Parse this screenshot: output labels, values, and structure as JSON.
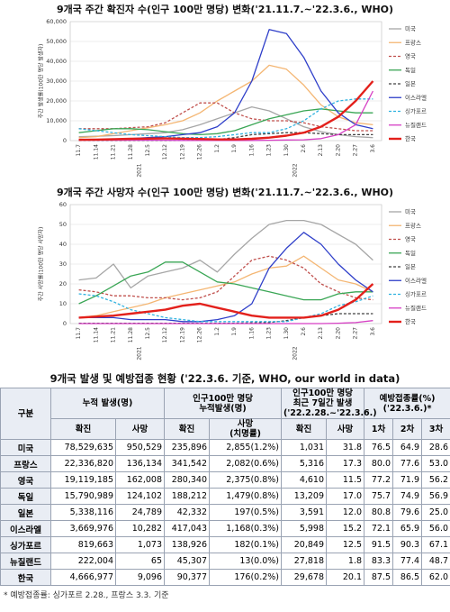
{
  "chart_data": [
    {
      "type": "line",
      "title": "9개국 주간 확진자 수(인구 100만 명당) 변화('21.11.7.~'22.3.6., WHO)",
      "y_label": "주간 발생률(100만 명당 발생자)",
      "categories": [
        "11.7",
        "11.14",
        "11.21",
        "11.28",
        "12.5",
        "12.12",
        "12.19",
        "12.26",
        "1.2",
        "1.9",
        "1.16",
        "1.23",
        "1.30",
        "2.6",
        "2.13",
        "2.20",
        "2.27",
        "3.6"
      ],
      "x_groups": [
        "2021",
        "2022"
      ],
      "ylim": [
        0,
        60000
      ],
      "yticks": [
        0,
        {
          "value": 10000,
          "label": "10,000"
        },
        {
          "value": 20000,
          "label": "20,000"
        },
        {
          "value": 30000,
          "label": "30,000"
        },
        {
          "value": 40000,
          "label": "40,000"
        },
        {
          "value": 50000,
          "label": "50,000"
        },
        {
          "value": 60000,
          "label": "60,000"
        }
      ],
      "grid": true,
      "series": [
        {
          "name": "미국",
          "color": "#a6a6a6",
          "values": [
            2000,
            2200,
            2500,
            3000,
            3500,
            4000,
            5500,
            8000,
            11000,
            14000,
            17000,
            15000,
            11000,
            7000,
            4500,
            3000,
            2000,
            1500
          ]
        },
        {
          "name": "프랑스",
          "color": "#f4b673",
          "values": [
            1500,
            2000,
            3500,
            5000,
            6500,
            8000,
            10000,
            14000,
            20000,
            25000,
            30000,
            38000,
            36000,
            28000,
            18000,
            12000,
            9000,
            8000
          ]
        },
        {
          "name": "영국",
          "color": "#c0504d",
          "dashed": true,
          "values": [
            6000,
            6000,
            6000,
            6500,
            7000,
            9000,
            14000,
            19000,
            19000,
            14000,
            11000,
            10000,
            10000,
            9000,
            7000,
            6000,
            5000,
            5000
          ]
        },
        {
          "name": "독일",
          "color": "#3aa655",
          "values": [
            4000,
            5000,
            6000,
            6000,
            5500,
            4500,
            3500,
            3000,
            3500,
            5000,
            8000,
            11000,
            13000,
            15000,
            16000,
            15000,
            14000,
            14000
          ]
        },
        {
          "name": "일본",
          "color": "#404040",
          "dashed": true,
          "values": [
            50,
            50,
            50,
            50,
            50,
            50,
            100,
            200,
            500,
            1500,
            3000,
            3500,
            4000,
            4000,
            3500,
            3000,
            3000,
            3000
          ]
        },
        {
          "name": "이스라엘",
          "color": "#2e3ec9",
          "values": [
            500,
            500,
            700,
            1000,
            1500,
            2000,
            3000,
            4000,
            7000,
            14000,
            30000,
            56000,
            54000,
            42000,
            25000,
            14000,
            8000,
            6000
          ]
        },
        {
          "name": "싱가포르",
          "color": "#2fb2e0",
          "dashed": true,
          "values": [
            6000,
            5000,
            4000,
            3000,
            2500,
            2000,
            1500,
            1500,
            2000,
            3000,
            4000,
            4000,
            6000,
            10000,
            16000,
            20000,
            21000,
            21000
          ]
        },
        {
          "name": "뉴질랜드",
          "color": "#d63fc4",
          "values": [
            200,
            200,
            200,
            200,
            200,
            200,
            100,
            100,
            100,
            100,
            100,
            200,
            300,
            400,
            1000,
            3000,
            8000,
            25000
          ]
        },
        {
          "name": "한국",
          "color": "#e3201b",
          "bold": true,
          "values": [
            400,
            500,
            700,
            900,
            1000,
            1100,
            1000,
            800,
            600,
            600,
            900,
            1500,
            2500,
            4000,
            7000,
            12000,
            20000,
            30000
          ]
        }
      ]
    },
    {
      "type": "line",
      "title": "9개국 주간 사망자 수(인구 100만 명당) 변화('21.11.7.~'22.3.6., WHO)",
      "y_label": "주간 사망률(100만 명당 사망자)",
      "categories": [
        "11.7",
        "11.14",
        "11.21",
        "11.28",
        "12.5",
        "12.12",
        "12.19",
        "12.26",
        "1.2",
        "1.9",
        "1.16",
        "1.23",
        "1.30",
        "2.6",
        "2.13",
        "2.20",
        "2.27",
        "3.6"
      ],
      "x_groups": [
        "2021",
        "2022"
      ],
      "ylim": [
        0,
        60
      ],
      "yticks": [
        0,
        10,
        20,
        30,
        40,
        50,
        60
      ],
      "grid": true,
      "series": [
        {
          "name": "미국",
          "color": "#a6a6a6",
          "values": [
            22,
            23,
            30,
            18,
            24,
            26,
            28,
            32,
            26,
            35,
            43,
            50,
            52,
            52,
            50,
            45,
            40,
            32
          ]
        },
        {
          "name": "프랑스",
          "color": "#f4b673",
          "values": [
            3,
            4,
            6,
            8,
            10,
            13,
            15,
            17,
            19,
            21,
            25,
            28,
            29,
            34,
            28,
            22,
            20,
            16
          ]
        },
        {
          "name": "영국",
          "color": "#c0504d",
          "dashed": true,
          "values": [
            17,
            16,
            14,
            14,
            13,
            13,
            12,
            13,
            16,
            24,
            32,
            34,
            32,
            28,
            20,
            16,
            13,
            12
          ]
        },
        {
          "name": "독일",
          "color": "#3aa655",
          "values": [
            10,
            14,
            19,
            24,
            26,
            31,
            31,
            26,
            21,
            20,
            18,
            16,
            14,
            12,
            12,
            15,
            16,
            16
          ]
        },
        {
          "name": "일본",
          "color": "#404040",
          "dashed": true,
          "values": [
            0.2,
            0.2,
            0.2,
            0.2,
            0.2,
            0.2,
            0.2,
            0.2,
            0.2,
            0.2,
            0.3,
            0.5,
            1.5,
            3,
            4,
            5,
            5,
            5
          ]
        },
        {
          "name": "이스라엘",
          "color": "#2e3ec9",
          "values": [
            3,
            3,
            3,
            2,
            2,
            2,
            1,
            1,
            2,
            4,
            10,
            28,
            38,
            46,
            40,
            30,
            22,
            16
          ]
        },
        {
          "name": "싱가포르",
          "color": "#2fb2e0",
          "dashed": true,
          "values": [
            15,
            14,
            11,
            7,
            5,
            3,
            2,
            1,
            1,
            1,
            1,
            1,
            1,
            3,
            5,
            9,
            11,
            14
          ]
        },
        {
          "name": "뉴질랜드",
          "color": "#d63fc4",
          "values": [
            0,
            0,
            0,
            0,
            0,
            0,
            0,
            0,
            0,
            0,
            0,
            0,
            0,
            0,
            0,
            0.2,
            0.5,
            1.5
          ]
        },
        {
          "name": "한국",
          "color": "#e3201b",
          "bold": true,
          "values": [
            3,
            3.5,
            4,
            5,
            6,
            7,
            9,
            10,
            8,
            6,
            4,
            3,
            3,
            3,
            4,
            7,
            12,
            20
          ]
        }
      ]
    }
  ],
  "table": {
    "title": "9개국 발생 및 예방접종 현황 ('22.3.6. 기준, WHO, our world in data)",
    "group_header": "구분",
    "header_groups": [
      "누적 발생(명)",
      "인구100만 명당\n누적발생(명)",
      "인구100만 명당\n최근 7일간 발생\n('22.2.28.~'22.3.6.)",
      "예방접종률(%)\n('22.3.6.)*"
    ],
    "sub_headers": [
      "확진",
      "사망",
      "확진",
      "사망\n(치명률)",
      "확진",
      "사망",
      "1차",
      "2차",
      "3차"
    ],
    "rows": [
      [
        "미국",
        "78,529,635",
        "950,529",
        "235,896",
        "2,855(1.2%)",
        "1,031",
        "31.8",
        "76.5",
        "64.9",
        "28.6"
      ],
      [
        "프랑스",
        "22,336,820",
        "136,134",
        "341,542",
        "2,082(0.6%)",
        "5,316",
        "17.3",
        "80.0",
        "77.6",
        "53.0"
      ],
      [
        "영국",
        "19,119,185",
        "162,008",
        "280,340",
        "2,375(0.8%)",
        "4,610",
        "11.5",
        "77.2",
        "71.9",
        "56.2"
      ],
      [
        "독일",
        "15,790,989",
        "124,102",
        "188,212",
        "1,479(0.8%)",
        "13,209",
        "17.0",
        "75.7",
        "74.9",
        "56.9"
      ],
      [
        "일본",
        "5,338,116",
        "24,789",
        "42,332",
        "197(0.5%)",
        "3,591",
        "12.0",
        "80.8",
        "79.6",
        "25.0"
      ],
      [
        "이스라엘",
        "3,669,976",
        "10,282",
        "417,043",
        "1,168(0.3%)",
        "5,998",
        "15.2",
        "72.1",
        "65.9",
        "56.0"
      ],
      [
        "싱가포르",
        "819,663",
        "1,073",
        "138,926",
        "182(0.1%)",
        "20,849",
        "12.5",
        "91.5",
        "90.3",
        "67.1"
      ],
      [
        "뉴질랜드",
        "222,004",
        "65",
        "45,307",
        "13(0.0%)",
        "27,818",
        "1.8",
        "83.3",
        "77.4",
        "48.7"
      ],
      [
        "한국",
        "4,666,977",
        "9,096",
        "90,377",
        "176(0.2%)",
        "29,678",
        "20.1",
        "87.5",
        "86.5",
        "62.0"
      ]
    ],
    "footnote": "* 예방접종률: 싱가포르 2.28., 프랑스 3.3. 기준"
  }
}
